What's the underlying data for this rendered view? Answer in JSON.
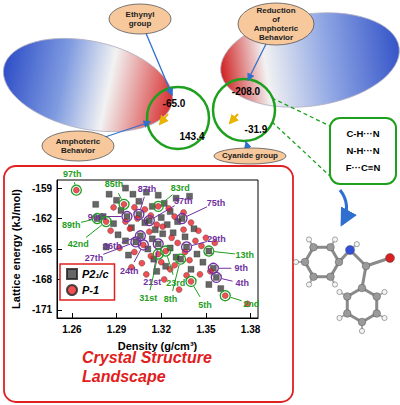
{
  "diagram": {
    "callouts": [
      "Ethynyl group",
      "Reduction of Amphoteric Behavior",
      "Amphoteric Behavior",
      "Cyanide group"
    ],
    "potentials": [
      "-65.0",
      "143.4",
      "-208.0",
      "-31.9"
    ],
    "interactions": [
      "C-H···N",
      "N-H···N",
      "F···C≡N"
    ]
  },
  "chart_data": {
    "type": "scatter",
    "title": "Crystal Structure Landscape",
    "x_label": "Density (g/cm³)",
    "y_label": "Lattice energy (kJ/mol)",
    "xlim": [
      1.25,
      1.385
    ],
    "xticks": [
      1.26,
      1.29,
      1.32,
      1.35,
      1.38
    ],
    "ylim": [
      -171.8,
      -158.2
    ],
    "yticks": [
      -171,
      -168,
      -165,
      -162,
      -159
    ],
    "grid": false,
    "legend": "left",
    "series": [
      {
        "name": "P2₁/c",
        "color": "#404040",
        "marker": "square",
        "values": [
          [
            1.276,
            -160.6
          ],
          [
            1.285,
            -159.6
          ],
          [
            1.29,
            -160.2
          ],
          [
            1.296,
            -159.0
          ],
          [
            1.301,
            -159.6
          ],
          [
            1.305,
            -160.3
          ],
          [
            1.31,
            -159.4
          ],
          [
            1.314,
            -160.8
          ],
          [
            1.318,
            -159.7
          ],
          [
            1.322,
            -160.5
          ],
          [
            1.326,
            -161.3
          ],
          [
            1.33,
            -160.0
          ],
          [
            1.334,
            -162.0
          ],
          [
            1.339,
            -159.8
          ],
          [
            1.281,
            -161.8
          ],
          [
            1.288,
            -162.5
          ],
          [
            1.293,
            -161.2
          ],
          [
            1.297,
            -161.8
          ],
          [
            1.3,
            -162.9
          ],
          [
            1.305,
            -161.6
          ],
          [
            1.309,
            -162.4
          ],
          [
            1.312,
            -162.2
          ],
          [
            1.316,
            -163.1
          ],
          [
            1.32,
            -161.9
          ],
          [
            1.324,
            -162.6
          ],
          [
            1.328,
            -163.4
          ],
          [
            1.331,
            -162.3
          ],
          [
            1.336,
            -163.8
          ],
          [
            1.342,
            -163.0
          ],
          [
            1.291,
            -163.6
          ],
          [
            1.296,
            -164.2
          ],
          [
            1.303,
            -164.3
          ],
          [
            1.306,
            -163.7
          ],
          [
            1.311,
            -165.0
          ],
          [
            1.314,
            -164.0
          ],
          [
            1.318,
            -164.5
          ],
          [
            1.321,
            -163.5
          ],
          [
            1.326,
            -164.9
          ],
          [
            1.33,
            -165.8
          ],
          [
            1.337,
            -164.8
          ],
          [
            1.344,
            -165.5
          ],
          [
            1.352,
            -165.2
          ],
          [
            1.298,
            -165.6
          ],
          [
            1.315,
            -166.0
          ],
          [
            1.323,
            -166.7
          ],
          [
            1.333,
            -166.0
          ],
          [
            1.34,
            -167.0
          ],
          [
            1.348,
            -166.3
          ],
          [
            1.355,
            -166.9
          ],
          [
            1.357,
            -167.8
          ],
          [
            1.352,
            -168.5
          ],
          [
            1.36,
            -168.9
          ],
          [
            1.317,
            -167.2
          ],
          [
            1.283,
            -164.8
          ],
          [
            1.277,
            -162.0
          ]
        ]
      },
      {
        "name": "P-1",
        "color": "#e8262a",
        "marker": "circle",
        "values": [
          [
            1.263,
            -159.2
          ],
          [
            1.295,
            -160.6
          ],
          [
            1.318,
            -160.8
          ],
          [
            1.302,
            -160.9
          ],
          [
            1.309,
            -161.1
          ],
          [
            1.313,
            -161.7
          ],
          [
            1.321,
            -162.8
          ],
          [
            1.325,
            -161.0
          ],
          [
            1.329,
            -161.8
          ],
          [
            1.335,
            -161.4
          ],
          [
            1.34,
            -162.4
          ],
          [
            1.345,
            -163.2
          ],
          [
            1.299,
            -163.0
          ],
          [
            1.308,
            -164.6
          ],
          [
            1.312,
            -163.3
          ],
          [
            1.317,
            -162.6
          ],
          [
            1.323,
            -165.2
          ],
          [
            1.318,
            -165.5
          ],
          [
            1.327,
            -163.9
          ],
          [
            1.331,
            -164.4
          ],
          [
            1.335,
            -163.1
          ],
          [
            1.339,
            -166.1
          ],
          [
            1.343,
            -164.2
          ],
          [
            1.347,
            -164.7
          ],
          [
            1.35,
            -163.9
          ],
          [
            1.286,
            -163.2
          ],
          [
            1.292,
            -164.9
          ],
          [
            1.302,
            -165.3
          ],
          [
            1.307,
            -166.4
          ],
          [
            1.313,
            -165.7
          ],
          [
            1.32,
            -166.3
          ],
          [
            1.326,
            -167.0
          ],
          [
            1.329,
            -166.6
          ],
          [
            1.336,
            -165.3
          ],
          [
            1.34,
            -168.2
          ],
          [
            1.346,
            -167.5
          ],
          [
            1.353,
            -167.2
          ],
          [
            1.363,
            -169.6
          ],
          [
            1.378,
            -170.4
          ],
          [
            1.296,
            -162.3
          ],
          [
            1.304,
            -162.0
          ],
          [
            1.283,
            -162.3
          ],
          [
            1.288,
            -160.9
          ],
          [
            1.332,
            -169.0
          ],
          [
            1.356,
            -164.4
          ],
          [
            1.31,
            -167.5
          ],
          [
            1.322,
            -168.0
          ],
          [
            1.3,
            -166.8
          ],
          [
            1.337,
            -167.6
          ]
        ]
      }
    ],
    "annotations": [
      {
        "text": "97th",
        "x": 1.263,
        "y": -159.2,
        "color": "#1f9e1f"
      },
      {
        "text": "85th",
        "x": 1.295,
        "y": -160.6,
        "color": "#1f9e1f"
      },
      {
        "text": "87th",
        "x": 1.305,
        "y": -161.6,
        "color": "#7030a0"
      },
      {
        "text": "83rd",
        "x": 1.318,
        "y": -160.8,
        "color": "#1f9e1f"
      },
      {
        "text": "37th",
        "x": 1.312,
        "y": -162.2,
        "color": "#7030a0"
      },
      {
        "text": "75th",
        "x": 1.334,
        "y": -162.0,
        "color": "#7030a0"
      },
      {
        "text": "90th",
        "x": 1.297,
        "y": -161.8,
        "color": "#7030a0"
      },
      {
        "text": "89th",
        "x": 1.277,
        "y": -162.0,
        "color": "#1f9e1f"
      },
      {
        "text": "42nd",
        "x": 1.283,
        "y": -162.3,
        "color": "#1f9e1f"
      },
      {
        "text": "36th",
        "x": 1.306,
        "y": -163.7,
        "color": "#7030a0"
      },
      {
        "text": "27th",
        "x": 1.303,
        "y": -164.3,
        "color": "#7030a0"
      },
      {
        "text": "24th",
        "x": 1.308,
        "y": -164.6,
        "color": "#7030a0"
      },
      {
        "text": "21st",
        "x": 1.318,
        "y": -164.5,
        "color": "#7030a0"
      },
      {
        "text": "31st",
        "x": 1.318,
        "y": -165.5,
        "color": "#1f9e1f"
      },
      {
        "text": "23rd",
        "x": 1.323,
        "y": -165.2,
        "color": "#1f9e1f"
      },
      {
        "text": "8th",
        "x": 1.333,
        "y": -166.0,
        "color": "#1f9e1f"
      },
      {
        "text": "29th",
        "x": 1.337,
        "y": -164.8,
        "color": "#7030a0"
      },
      {
        "text": "13th",
        "x": 1.352,
        "y": -165.2,
        "color": "#1f9e1f"
      },
      {
        "text": "9th",
        "x": 1.355,
        "y": -166.9,
        "color": "#7030a0"
      },
      {
        "text": "4th",
        "x": 1.357,
        "y": -167.8,
        "color": "#7030a0"
      },
      {
        "text": "5th",
        "x": 1.34,
        "y": -168.2,
        "color": "#1f9e1f"
      },
      {
        "text": "2nd",
        "x": 1.363,
        "y": -169.6,
        "color": "#1f9e1f"
      }
    ]
  }
}
